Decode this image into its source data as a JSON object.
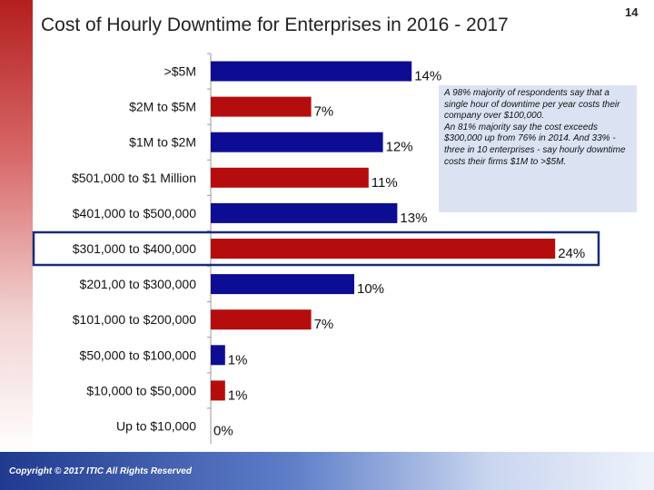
{
  "title": "Cost of Hourly Downtime for Enterprises in 2016 - 2017",
  "page_number": "14",
  "copyright": "Copyright © 2017 ITIC All Rights Reserved",
  "note": "A 98% majority of respondents say that a single hour of downtime per year costs their company over $100,000.\nAn 81% majority say the cost exceeds $300,000 up from 76% in 2014. And 33% -three in 10 enterprises - say hourly downtime costs their firms $1M to >$5M.",
  "colors": {
    "blue": "#0d0d93",
    "red": "#b50d0d",
    "highlight_border": "#1a2a7a"
  },
  "highlighted_category": "$301,000 to $400,000",
  "chart_data": {
    "type": "bar",
    "orientation": "horizontal",
    "categories": [
      ">$5M",
      "$2M to $5M",
      "$1M to $2M",
      "$501,000 to $1 Million",
      "$401,000 to $500,000",
      "$301,000 to $400,000",
      "$201,00 to $300,000",
      "$101,000 to $200,000",
      "$50,000 to $100,000",
      "$10,000 to $50,000",
      "Up to $10,000"
    ],
    "values": [
      14,
      7,
      12,
      11,
      13,
      24,
      10,
      7,
      1,
      1,
      0
    ],
    "data_labels": [
      "14%",
      "7%",
      "12%",
      "11%",
      "13%",
      "24%",
      "10%",
      "7%",
      "1%",
      "1%",
      "0%"
    ],
    "bar_colors": [
      "blue",
      "red",
      "blue",
      "red",
      "blue",
      "red",
      "blue",
      "red",
      "blue",
      "red",
      "blue"
    ],
    "xlim": [
      0,
      25
    ]
  }
}
